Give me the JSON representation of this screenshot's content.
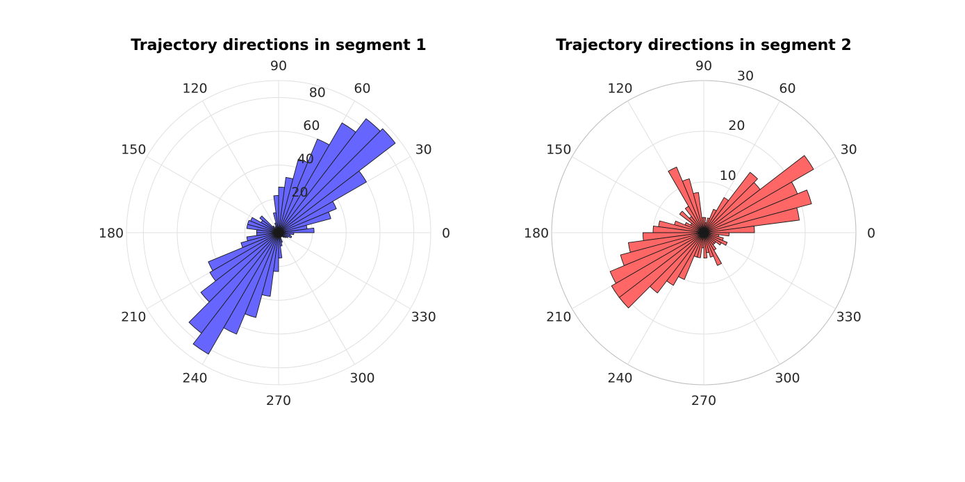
{
  "chart_data": [
    {
      "type": "polar-histogram",
      "title": "Trajectory directions in segment 1",
      "color": "#6666ff",
      "theta_ticks": [
        "0",
        "30",
        "60",
        "90",
        "120",
        "150",
        "180",
        "210",
        "240",
        "270",
        "300",
        "330"
      ],
      "r_ticks": [
        "20",
        "40",
        "60",
        "80"
      ],
      "rlim": [
        0,
        90
      ],
      "bin_width_deg": 7.5,
      "bin_start_deg": [
        0,
        7.5,
        15,
        22.5,
        30,
        37.5,
        45,
        52.5,
        60,
        67.5,
        75,
        82.5,
        90,
        97.5,
        105,
        112.5,
        120,
        127.5,
        135,
        142.5,
        150,
        157.5,
        165,
        172.5,
        180,
        187.5,
        195,
        202.5,
        210,
        217.5,
        225,
        232.5,
        240,
        247.5,
        255,
        262.5,
        270,
        277.5,
        285,
        292.5,
        300,
        307.5,
        315,
        322.5,
        330,
        337.5,
        345,
        352.5
      ],
      "values": [
        21,
        17,
        32,
        37,
        60,
        87,
        85,
        75,
        60,
        45,
        33,
        27,
        22,
        12,
        6,
        4,
        3,
        5,
        14,
        12,
        18,
        19,
        19,
        13,
        13,
        19,
        23,
        45,
        47,
        58,
        75,
        83,
        65,
        52,
        38,
        23,
        15,
        8,
        6,
        3,
        3,
        3,
        4,
        5,
        6,
        8,
        7,
        9
      ]
    },
    {
      "type": "polar-histogram",
      "title": "Trajectory directions in segment 2",
      "color": "#ff6666",
      "theta_ticks": [
        "0",
        "30",
        "60",
        "90",
        "120",
        "150",
        "180",
        "210",
        "240",
        "270",
        "300",
        "330"
      ],
      "r_ticks": [
        "10",
        "20",
        "30"
      ],
      "rlim": [
        0,
        30
      ],
      "bin_width_deg": 7.5,
      "bin_start_deg": [
        0,
        7.5,
        15,
        22.5,
        30,
        37.5,
        45,
        52.5,
        60,
        67.5,
        75,
        82.5,
        90,
        97.5,
        105,
        112.5,
        120,
        127.5,
        135,
        142.5,
        150,
        157.5,
        165,
        172.5,
        180,
        187.5,
        195,
        202.5,
        210,
        217.5,
        225,
        232.5,
        240,
        247.5,
        255,
        262.5,
        270,
        277.5,
        285,
        292.5,
        300,
        307.5,
        315,
        322.5,
        330,
        337.5,
        345,
        352.5
      ],
      "values": [
        10,
        19,
        22,
        20,
        25,
        14,
        15,
        8,
        5,
        3,
        2,
        3,
        3,
        8,
        11,
        14,
        6,
        4,
        6,
        3,
        4,
        6,
        9,
        10,
        12,
        15,
        17,
        20,
        21,
        21,
        15,
        12,
        10,
        5,
        5,
        3,
        5,
        4,
        5,
        7,
        4,
        3,
        3,
        4,
        5,
        4,
        3,
        5
      ]
    }
  ]
}
